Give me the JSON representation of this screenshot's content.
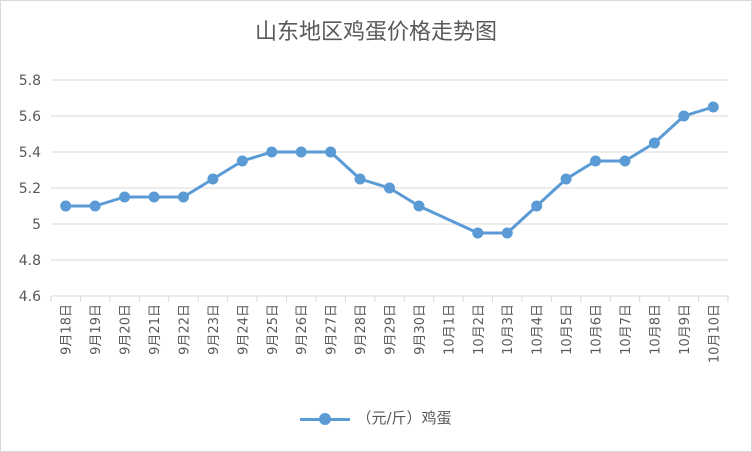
{
  "chart_data": {
    "type": "line",
    "title": "山东地区鸡蛋价格走势图",
    "xlabel": "",
    "ylabel": "",
    "categories": [
      "9月18日",
      "9月19日",
      "9月20日",
      "9月21日",
      "9月22日",
      "9月23日",
      "9月24日",
      "9月25日",
      "9月26日",
      "9月27日",
      "9月28日",
      "9月29日",
      "9月30日",
      "10月1日",
      "10月2日",
      "10月3日",
      "10月4日",
      "10月5日",
      "10月6日",
      "10月7日",
      "10月8日",
      "10月9日",
      "10月10日"
    ],
    "series": [
      {
        "name": "（元/斤）鸡蛋",
        "color": "#5b9bd5",
        "values": [
          5.1,
          5.1,
          5.15,
          5.15,
          5.15,
          5.25,
          5.35,
          5.4,
          5.4,
          5.4,
          5.25,
          5.2,
          5.1,
          null,
          4.95,
          4.95,
          5.1,
          5.25,
          5.35,
          5.35,
          5.45,
          5.6,
          5.65
        ]
      }
    ],
    "ylim": [
      4.6,
      5.8
    ],
    "yticks": [
      "4.6",
      "4.8",
      "5",
      "5.2",
      "5.4",
      "5.6",
      "5.8"
    ],
    "grid": true,
    "legend_position": "bottom"
  }
}
